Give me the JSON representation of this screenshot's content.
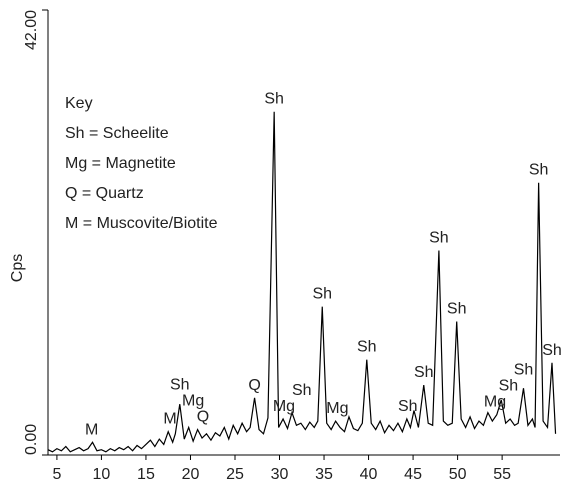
{
  "chart_data": {
    "type": "line",
    "ylabel": "Cps",
    "x": [
      4,
      4.5,
      5,
      5.5,
      6,
      6.5,
      7,
      7.5,
      8,
      8.5,
      9,
      9.5,
      10,
      10.5,
      11,
      11.5,
      12,
      12.5,
      13,
      13.5,
      14,
      14.5,
      15,
      15.5,
      16,
      16.5,
      17,
      17.5,
      18,
      18.3,
      18.8,
      19.3,
      19.8,
      20.3,
      20.8,
      21.3,
      21.8,
      22.3,
      22.8,
      23.3,
      23.8,
      24.3,
      24.8,
      25.3,
      25.8,
      26.3,
      26.7,
      27.2,
      27.7,
      28.2,
      28.7,
      29.4,
      29.9,
      30.4,
      30.9,
      31.4,
      31.9,
      32.4,
      32.9,
      33.4,
      33.9,
      34.3,
      34.8,
      35.3,
      35.8,
      36.3,
      36.8,
      37.3,
      37.8,
      38.3,
      38.8,
      39.3,
      39.8,
      40.3,
      40.8,
      41.3,
      41.8,
      42.3,
      42.8,
      43.3,
      43.8,
      44.3,
      44.7,
      45.1,
      45.6,
      46.2,
      46.7,
      47.2,
      47.9,
      48.4,
      48.9,
      49.4,
      49.9,
      50.4,
      50.9,
      51.4,
      51.9,
      52.4,
      52.9,
      53.4,
      53.9,
      54.4,
      54.9,
      55.4,
      55.9,
      56.4,
      56.8,
      57.4,
      57.9,
      58.4,
      58.7,
      59.1,
      59.6,
      60.1,
      60.6,
      61.0
    ],
    "values": [
      0.5,
      0.3,
      0.6,
      0.4,
      0.8,
      0.3,
      0.5,
      0.7,
      0.4,
      0.6,
      1.2,
      0.4,
      0.5,
      0.3,
      0.6,
      0.4,
      0.7,
      0.5,
      0.8,
      0.4,
      0.9,
      0.6,
      1.0,
      1.4,
      0.8,
      1.5,
      1.0,
      2.2,
      1.2,
      2.0,
      4.8,
      1.5,
      2.6,
      1.3,
      2.4,
      1.6,
      2.0,
      1.4,
      2.1,
      1.8,
      2.6,
      1.5,
      2.8,
      2.0,
      3.0,
      2.2,
      2.6,
      5.4,
      2.4,
      2.0,
      3.5,
      32.4,
      2.6,
      3.4,
      2.5,
      4.0,
      2.8,
      3.0,
      2.4,
      3.1,
      2.6,
      3.2,
      14.0,
      3.0,
      2.4,
      3.2,
      2.6,
      2.2,
      3.6,
      2.5,
      2.3,
      3.0,
      9.0,
      3.0,
      2.4,
      3.2,
      2.1,
      2.8,
      2.3,
      3.0,
      2.2,
      3.4,
      2.6,
      4.2,
      2.6,
      6.6,
      3.0,
      2.8,
      19.3,
      3.2,
      2.8,
      3.0,
      12.6,
      3.4,
      2.6,
      3.6,
      2.5,
      3.2,
      2.8,
      4.0,
      3.2,
      3.8,
      5.2,
      3.0,
      3.4,
      2.8,
      3.0,
      6.3,
      2.8,
      3.4,
      2.6,
      25.7,
      3.2,
      2.6,
      8.7,
      2.0
    ],
    "color": "#000000",
    "xlim": [
      4,
      61.5
    ],
    "xticks": [
      5,
      10,
      15,
      20,
      25,
      30,
      35,
      40,
      45,
      50,
      55
    ],
    "ylim": [
      0,
      42
    ],
    "yticks": [
      {
        "value": 0,
        "label": "0.00"
      },
      {
        "value": 42,
        "label": "42.00"
      }
    ],
    "peak_labels": [
      {
        "label": "M",
        "x": 8.9
      },
      {
        "label": "M",
        "x": 17.7
      },
      {
        "label": "Q",
        "x": 21.4
      },
      {
        "label": "Mg",
        "x": 20.3
      },
      {
        "label": "Sh",
        "x": 18.8
      },
      {
        "label": "Q",
        "x": 27.2
      },
      {
        "label": "Sh",
        "x": 29.4
      },
      {
        "label": "Mg",
        "x": 30.5
      },
      {
        "label": "Sh",
        "x": 32.5
      },
      {
        "label": "Sh",
        "x": 34.8
      },
      {
        "label": "Mg",
        "x": 36.5
      },
      {
        "label": "Sh",
        "x": 39.8
      },
      {
        "label": "Sh",
        "x": 44.4
      },
      {
        "label": "Sh",
        "x": 46.2
      },
      {
        "label": "Sh",
        "x": 47.9
      },
      {
        "label": "Sh",
        "x": 49.9
      },
      {
        "label": "Mg",
        "x": 54.2
      },
      {
        "label": "Sh",
        "x": 55.7
      },
      {
        "label": "Sh",
        "x": 57.4
      },
      {
        "label": "Sh",
        "x": 59.1
      },
      {
        "label": "Sh",
        "x": 60.6
      }
    ],
    "key": {
      "title": "Key",
      "entries": [
        "Sh = Scheelite",
        "Mg = Magnetite",
        "Q = Quartz",
        "M = Muscovite/Biotite"
      ]
    }
  }
}
